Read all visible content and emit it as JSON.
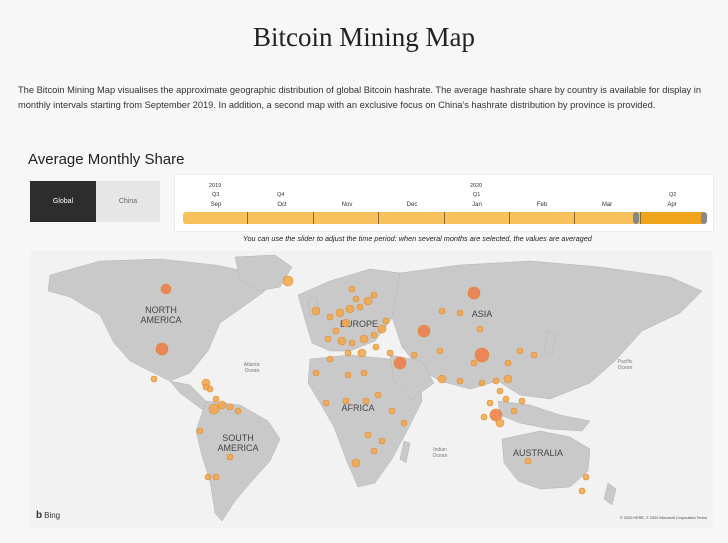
{
  "page": {
    "title": "Bitcoin Mining Map",
    "intro": "The Bitcoin Mining Map visualises the approximate geographic distribution of global Bitcoin hashrate. The average hashrate share by country is available for display in monthly intervals starting from September 2019. In addition, a second map with an exclusive focus on China's hashrate distribution by province is provided."
  },
  "section": {
    "title": "Average Monthly Share"
  },
  "toggle": {
    "global": "Global",
    "china": "China",
    "active": "Global"
  },
  "timeline": {
    "years": [
      "2019",
      "2020"
    ],
    "quarters": [
      "Q3",
      "Q4",
      "Q1",
      "Q2"
    ],
    "months": [
      "Sep",
      "Oct",
      "Nov",
      "Dec",
      "Jan",
      "Feb",
      "Mar",
      "Apr"
    ],
    "selected_month": "Apr",
    "colors": {
      "segment": "#f7c15c",
      "selected": "#f0a41b",
      "divider": "#8a6a2a"
    }
  },
  "hint": "You can use the slider to adjust the time period: when several months are selected, the values are averaged",
  "map": {
    "continent_labels": [
      "NORTH AMERICA",
      "EUROPE",
      "ASIA",
      "AFRICA",
      "SOUTH AMERICA",
      "AUSTRALIA"
    ],
    "ocean_labels": [
      "Atlantic Ocean",
      "Pacific Ocean",
      "Indian Ocean"
    ],
    "attribution": "Bing",
    "copyright": "© 2020 HERE, © 2020 Microsoft Corporation Terms",
    "colors": {
      "land": "#c9c9c9",
      "water": "#f2f2f2",
      "bubble": "#f3a64a",
      "bubble_stroke": "#e08a2a",
      "bubble_large": "#f07a45"
    }
  }
}
